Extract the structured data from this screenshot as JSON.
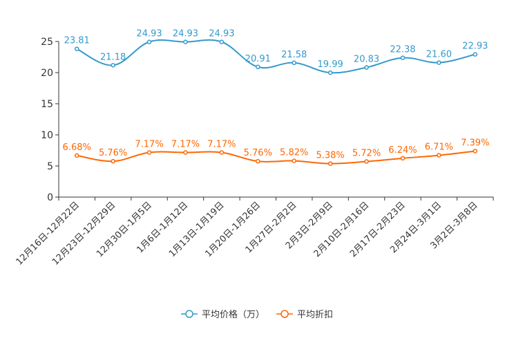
{
  "chart_data": {
    "type": "line",
    "title": "",
    "xlabel": "",
    "ylabel": "",
    "ylim": [
      0,
      25
    ],
    "yticks": [
      0,
      5,
      10,
      15,
      20,
      25
    ],
    "categories": [
      "12月16日-12月22日",
      "12月23日-12月29日",
      "12月30日-1月5日",
      "1月6日-1月12日",
      "1月13日-1月19日",
      "1月20日-1月26日",
      "1月27日-2月2日",
      "2月3日-2月9日",
      "2月10日-2月16日",
      "2月17日-2月23日",
      "2月24日-3月1日",
      "3月2日-3月8日"
    ],
    "series": [
      {
        "name": "平均价格（万）",
        "color": "#3399cc",
        "values": [
          23.81,
          21.18,
          24.93,
          24.93,
          24.93,
          20.91,
          21.58,
          19.99,
          20.83,
          22.38,
          21.6,
          22.93
        ],
        "labels": [
          "23.81",
          "21.18",
          "24.93",
          "24.93",
          "24.93",
          "20.91",
          "21.58",
          "19.99",
          "20.83",
          "22.38",
          "21.60",
          "22.93"
        ]
      },
      {
        "name": "平均折扣",
        "color": "#ff6600",
        "values": [
          6.68,
          5.76,
          7.17,
          7.17,
          7.17,
          5.76,
          5.82,
          5.38,
          5.72,
          6.24,
          6.71,
          7.39
        ],
        "labels": [
          "6.68%",
          "5.76%",
          "7.17%",
          "7.17%",
          "7.17%",
          "5.76%",
          "5.82%",
          "5.38%",
          "5.72%",
          "6.24%",
          "6.71%",
          "7.39%"
        ]
      }
    ],
    "legend_position": "bottom-center",
    "grid": false
  }
}
